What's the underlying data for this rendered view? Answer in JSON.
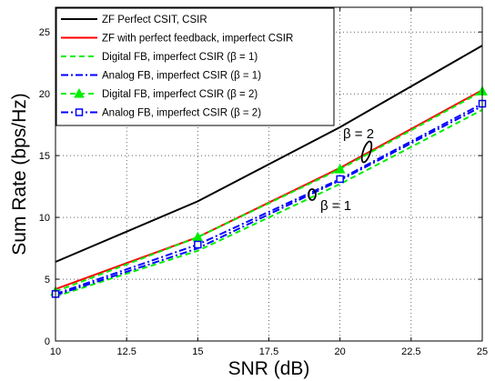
{
  "chart_data": {
    "type": "line",
    "xlabel": "SNR (dB)",
    "ylabel": "Sum Rate (bps/Hz)",
    "xlim": [
      10,
      25
    ],
    "ylim": [
      0,
      27
    ],
    "xticks": [
      "10",
      "12.5",
      "15",
      "17.5",
      "20",
      "22.5",
      "25"
    ],
    "yticks": [
      "0",
      "5",
      "10",
      "15",
      "20",
      "25"
    ],
    "grid": true,
    "legend_position": "top-left",
    "series": [
      {
        "name": "ZF Perfect CSIT, CSIR",
        "x": [
          10,
          15,
          20,
          25
        ],
        "y": [
          6.4,
          11.3,
          17.3,
          23.9
        ],
        "color": "#000000",
        "dash": "",
        "marker": "none"
      },
      {
        "name": "ZF with perfect feedback, imperfect CSIR",
        "x": [
          10,
          15,
          20,
          25
        ],
        "y": [
          4.2,
          8.4,
          14.0,
          20.3
        ],
        "color": "#ff0000",
        "dash": "",
        "marker": "none"
      },
      {
        "name": "Digital FB, imperfect CSIR  (β = 1)",
        "x": [
          10,
          15,
          20,
          25
        ],
        "y": [
          3.6,
          7.3,
          12.7,
          18.7
        ],
        "color": "#00ee00",
        "dash": "6,4",
        "marker": "none"
      },
      {
        "name": "Analog FB, imperfect CSIR  (β = 1)",
        "x": [
          10,
          15,
          20,
          25
        ],
        "y": [
          3.7,
          7.5,
          13.0,
          19.0
        ],
        "color": "#0000ff",
        "dash": "8,3,2,3",
        "marker": "none"
      },
      {
        "name": "Digital FB, imperfect CSIR  (β = 2)",
        "x": [
          10,
          15,
          20,
          25
        ],
        "y": [
          4.0,
          8.4,
          13.9,
          20.2
        ],
        "color": "#00ee00",
        "dash": "6,4",
        "marker": "triangle"
      },
      {
        "name": "Analog FB, imperfect CSIR  (β = 2)",
        "x": [
          10,
          15,
          20,
          25
        ],
        "y": [
          3.8,
          7.8,
          13.1,
          19.2
        ],
        "color": "#0000ff",
        "dash": "8,3,2,3",
        "marker": "square"
      }
    ],
    "annotations": [
      "β = 2",
      "β = 1"
    ]
  }
}
